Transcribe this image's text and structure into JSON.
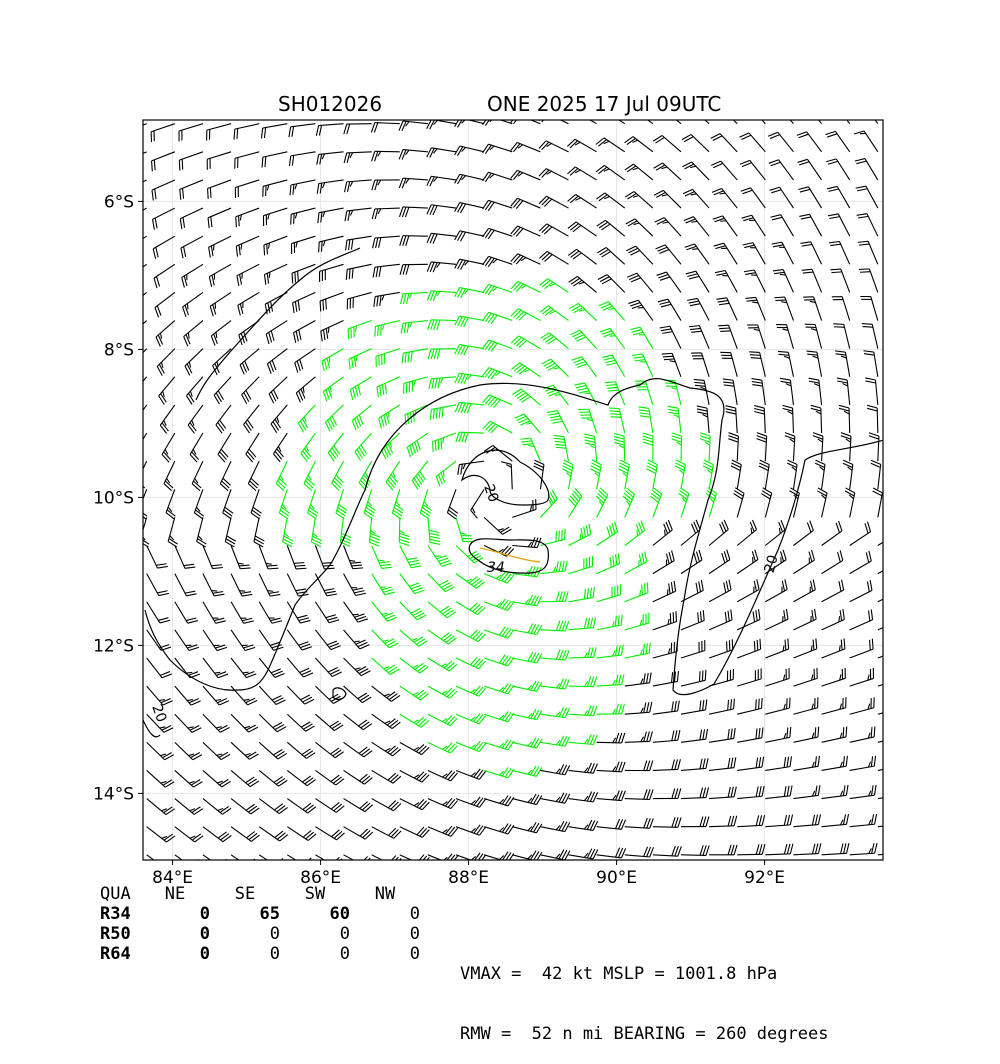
{
  "title": {
    "storm_id": "SH012026",
    "storm_info": "ONE 2025 17 Jul 09UTC"
  },
  "map": {
    "lon_range": [
      83.6,
      93.6
    ],
    "lat_range": [
      -14.9,
      -4.9
    ],
    "x_ticks": [
      {
        "lon": 84,
        "label": "84°E"
      },
      {
        "lon": 86,
        "label": "86°E"
      },
      {
        "lon": 88,
        "label": "88°E"
      },
      {
        "lon": 90,
        "label": "90°E"
      },
      {
        "lon": 92,
        "label": "92°E"
      }
    ],
    "y_ticks": [
      {
        "lat": -6,
        "label": "6°S"
      },
      {
        "lat": -8,
        "label": "8°S"
      },
      {
        "lat": -10,
        "label": "10°S"
      },
      {
        "lat": -12,
        "label": "12°S"
      },
      {
        "lat": -14,
        "label": "14°S"
      }
    ],
    "grid": true,
    "center": {
      "lon": 88.4,
      "lat": -9.9
    },
    "wind_barbs": {
      "grid_spacing_deg": 0.38,
      "colors": {
        "below_34": "#000000",
        "34_to_50": "#00ee00",
        "core_34": "#e6a817"
      }
    },
    "contours": [
      {
        "label": "20",
        "color": "#000000"
      },
      {
        "label": "34",
        "color": "#e6a817"
      },
      {
        "label": "20",
        "color": "#000000"
      },
      {
        "label": "20",
        "color": "#000000"
      }
    ]
  },
  "wind_radii": {
    "headers": [
      "QUA",
      "NE",
      "SE",
      "SW",
      "NW"
    ],
    "rows": [
      {
        "label": "R34",
        "values": [
          "0",
          "65",
          "60",
          "0"
        ]
      },
      {
        "label": "R50",
        "values": [
          "0",
          "0",
          "0",
          "0"
        ]
      },
      {
        "label": "R64",
        "values": [
          "0",
          "0",
          "0",
          "0"
        ]
      }
    ]
  },
  "stats": {
    "line1": "VMAX =  42 kt MSLP = 1001.8 hPa",
    "line2": "RMW =  52 n mi BEARING = 260 degrees"
  }
}
